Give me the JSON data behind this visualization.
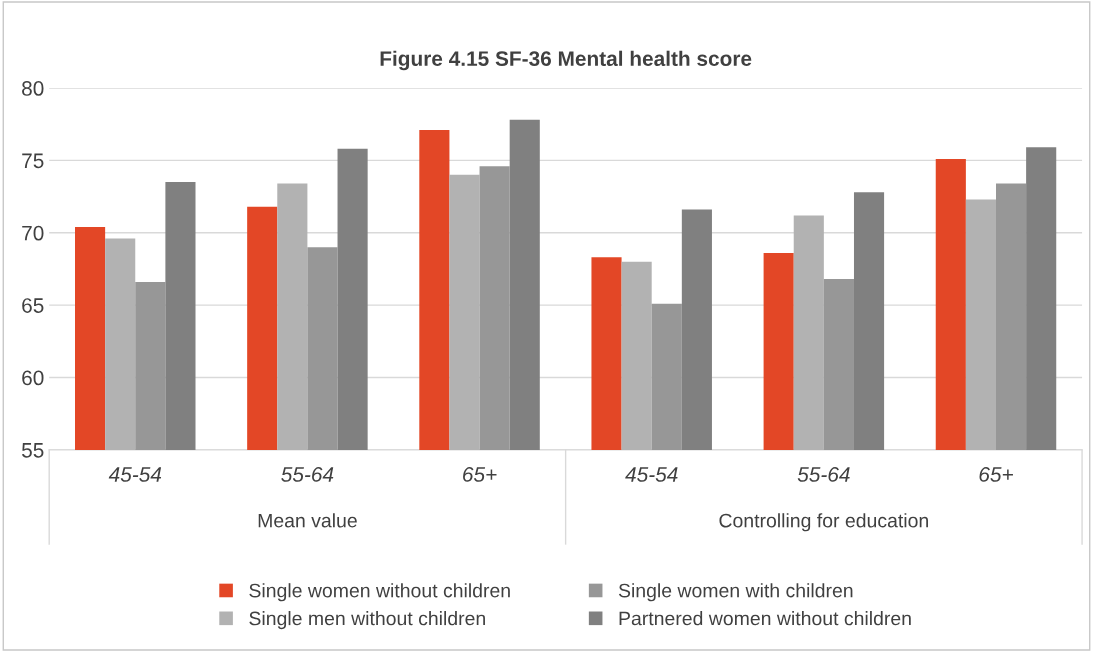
{
  "chart_data": {
    "type": "bar",
    "title": "Figure 4.15 SF-36 Mental health score",
    "categories": [
      "45-54",
      "55-64",
      "65+",
      "45-54",
      "55-64",
      "65+"
    ],
    "annotations": [
      "Mean value",
      "Controlling for education"
    ],
    "series": [
      {
        "name": "Single women without children",
        "color": "#e34726",
        "values": [
          70.4,
          71.8,
          77.1,
          68.3,
          68.6,
          75.1
        ]
      },
      {
        "name": "Single men without children",
        "color": "#b2b2b2",
        "values": [
          69.6,
          73.4,
          74.0,
          68.0,
          71.2,
          72.3
        ]
      },
      {
        "name": "Single women with children",
        "color": "#979797",
        "values": [
          66.6,
          69.0,
          74.6,
          65.1,
          66.8,
          73.4
        ]
      },
      {
        "name": "Partnered women without children",
        "color": "#808080",
        "values": [
          73.5,
          75.8,
          77.8,
          71.6,
          72.8,
          75.9
        ]
      }
    ],
    "ylim": [
      55,
      80
    ],
    "yticks": [
      55,
      60,
      65,
      70,
      75,
      80
    ],
    "grid": "y",
    "legend": "bottom"
  }
}
